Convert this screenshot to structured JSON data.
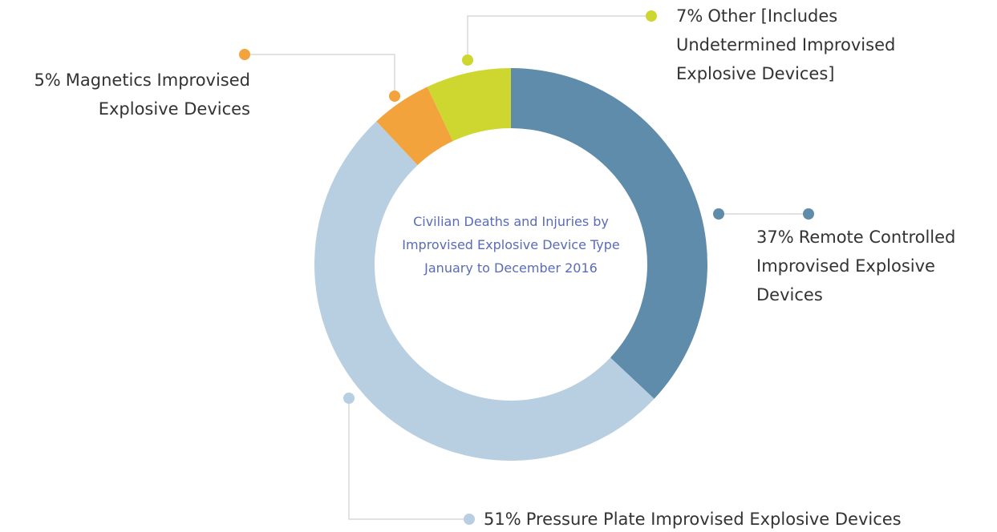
{
  "chart_data": {
    "type": "donut",
    "title": "Civilian Deaths and Injuries by Improvised Explosive Device Type January to December 2016",
    "categories": [
      "Remote Controlled Improvised Explosive Devices",
      "Pressure Plate Improvised Explosive Devices",
      "Magnetics Improvised Explosive Devices",
      "Other [Includes Undetermined Improvised Explosive Devices]"
    ],
    "values": [
      37,
      51,
      5,
      7
    ],
    "value_labels": [
      "37%",
      "51%",
      "5%",
      "7%"
    ],
    "colors": [
      "#5f8cab",
      "#b8cee1",
      "#f3a33c",
      "#cdd730"
    ]
  }
}
